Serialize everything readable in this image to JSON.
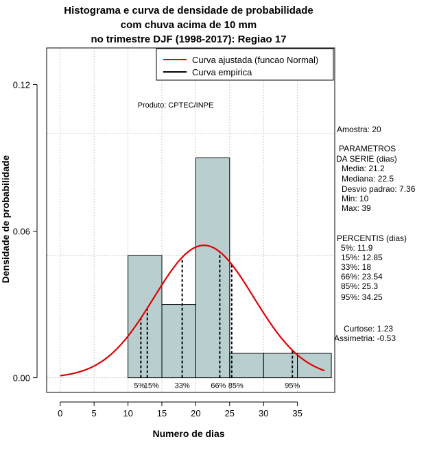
{
  "chart_data": {
    "type": "histogram",
    "title_lines": [
      "Histograma e curva de densidade de probabilidade",
      "com chuva acima de 10 mm",
      "no trimestre DJF (1998-2017): Regiao 17"
    ],
    "xlabel": "Numero de dias",
    "ylabel": "Densidade de probabilidade",
    "xlim": [
      -2,
      40.5
    ],
    "ylim": [
      -0.006,
      0.135
    ],
    "x_ticks": [
      0,
      5,
      10,
      15,
      20,
      25,
      30,
      35
    ],
    "y_ticks": [
      0.0,
      0.06,
      0.12
    ],
    "y_tick_labels": [
      "0.00",
      "0.06",
      "0.12"
    ],
    "grid": true,
    "bins": [
      {
        "start": 10,
        "end": 15,
        "density": 0.05
      },
      {
        "start": 15,
        "end": 20,
        "density": 0.03
      },
      {
        "start": 20,
        "end": 25,
        "density": 0.09
      },
      {
        "start": 25,
        "end": 30,
        "density": 0.01
      },
      {
        "start": 30,
        "end": 35,
        "density": 0.01
      },
      {
        "start": 35,
        "end": 40,
        "density": 0.01
      }
    ],
    "bar_color": "#b9cfcf",
    "normal_fit": {
      "mean": 21.2,
      "sd": 7.36,
      "x_range": [
        0,
        39
      ],
      "color": "#e00000"
    },
    "percentile_lines": [
      {
        "label": "5%",
        "value": 11.9
      },
      {
        "label": "15%",
        "value": 12.85
      },
      {
        "label": "33%",
        "value": 18
      },
      {
        "label": "66%",
        "value": 23.54
      },
      {
        "label": "85%",
        "value": 25.3
      },
      {
        "label": "95%",
        "value": 34.25
      }
    ],
    "legend": {
      "position": "top-right",
      "entries": [
        {
          "label": "Curva ajustada (funcao Normal)",
          "color": "#e00000"
        },
        {
          "label": "Curva empirica",
          "color": "#000000"
        }
      ]
    },
    "annotation": "Produto: CPTEC/INPE",
    "stats_lines": [
      "Amostra: 20",
      "PARAMETROS",
      "DA SERIE (dias)",
      "Media: 21.2",
      "Mediana: 22.5",
      "Desvio padrao: 7.36",
      "Min: 10",
      "Max: 39",
      "PERCENTIS (dias)",
      "5%: 11.9",
      "15%: 12.85",
      "33%: 18",
      "66%: 23.54",
      "85%: 25.3",
      "95%: 34.25",
      "Curtose: 1.23",
      "Assimetria: -0.53"
    ]
  }
}
